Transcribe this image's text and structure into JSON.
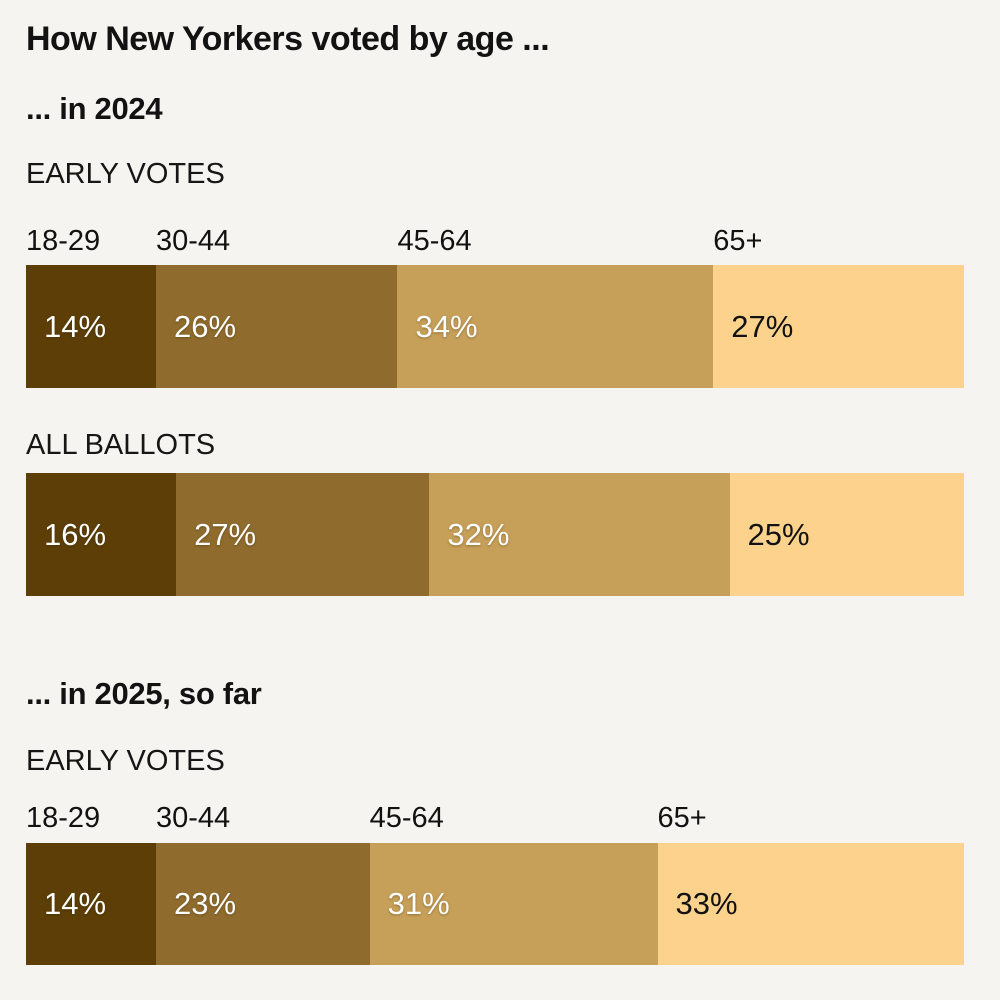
{
  "title": "How New Yorkers voted by age ...",
  "value_suffix": "%",
  "age_categories": [
    "18-29",
    "30-44",
    "45-64",
    "65+"
  ],
  "palette": {
    "background": "#f5f4f1",
    "text": "#121212",
    "segments": [
      "#5c3e06",
      "#8f6b2d",
      "#c69f58",
      "#fdd28c"
    ],
    "value_label_colors": [
      "#ffffff",
      "#ffffff",
      "#ffffff",
      "#121212"
    ]
  },
  "sections": [
    {
      "heading": "... in 2024",
      "groups": [
        {
          "label": "EARLY VOTES",
          "values": [
            14,
            26,
            34,
            27
          ]
        },
        {
          "label": "ALL BALLOTS",
          "values": [
            16,
            27,
            32,
            25
          ]
        }
      ]
    },
    {
      "heading": "... in 2025, so far",
      "groups": [
        {
          "label": "EARLY VOTES",
          "values": [
            14,
            23,
            31,
            33
          ]
        }
      ]
    }
  ],
  "chart_data": [
    {
      "type": "bar",
      "stacked": true,
      "orientation": "horizontal",
      "title": "How New Yorkers voted by age ...",
      "section": "... in 2024",
      "group": "EARLY VOTES",
      "categories": [
        "18-29",
        "30-44",
        "45-64",
        "65+"
      ],
      "values": [
        14,
        26,
        34,
        27
      ],
      "unit": "%",
      "value_labels": [
        "14%",
        "26%",
        "34%",
        "27%"
      ],
      "colors": [
        "#5c3e06",
        "#8f6b2d",
        "#c69f58",
        "#fdd28c"
      ],
      "legend_position": "labels-above-segments",
      "grid": false
    },
    {
      "type": "bar",
      "stacked": true,
      "orientation": "horizontal",
      "title": "How New Yorkers voted by age ...",
      "section": "... in 2024",
      "group": "ALL BALLOTS",
      "categories": [
        "18-29",
        "30-44",
        "45-64",
        "65+"
      ],
      "values": [
        16,
        27,
        32,
        25
      ],
      "unit": "%",
      "value_labels": [
        "16%",
        "27%",
        "32%",
        "25%"
      ],
      "colors": [
        "#5c3e06",
        "#8f6b2d",
        "#c69f58",
        "#fdd28c"
      ],
      "legend_position": "none",
      "grid": false
    },
    {
      "type": "bar",
      "stacked": true,
      "orientation": "horizontal",
      "title": "How New Yorkers voted by age ...",
      "section": "... in 2025, so far",
      "group": "EARLY VOTES",
      "categories": [
        "18-29",
        "30-44",
        "45-64",
        "65+"
      ],
      "values": [
        14,
        23,
        31,
        33
      ],
      "unit": "%",
      "value_labels": [
        "14%",
        "23%",
        "31%",
        "33%"
      ],
      "colors": [
        "#5c3e06",
        "#8f6b2d",
        "#c69f58",
        "#fdd28c"
      ],
      "legend_position": "labels-above-segments",
      "grid": false
    }
  ]
}
